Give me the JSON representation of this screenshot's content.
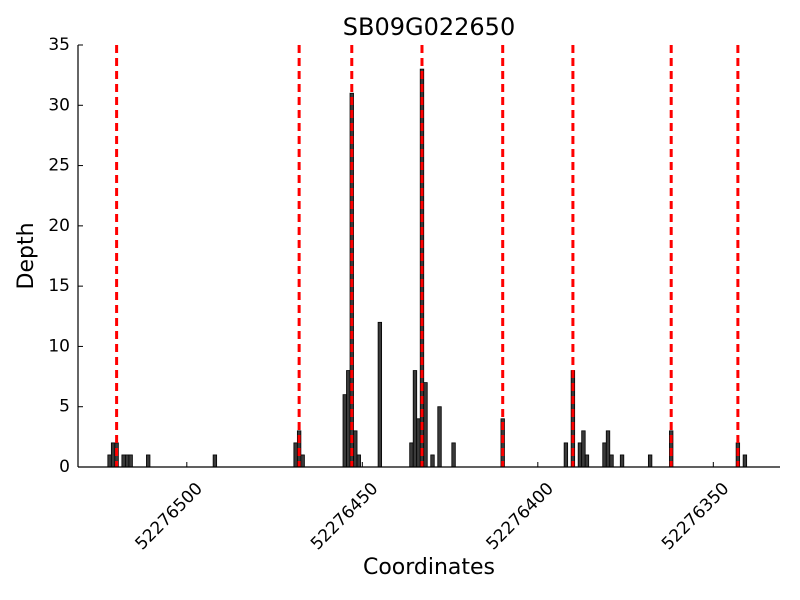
{
  "chart_data": {
    "type": "bar",
    "title": "SB09G022650",
    "x_label": "Coordinates",
    "y_label": "Depth",
    "x": [
      52276522,
      52276521,
      52276520,
      52276518,
      52276517,
      52276516,
      52276511,
      52276492,
      52276469,
      52276468,
      52276467,
      52276455,
      52276454,
      52276453,
      52276452,
      52276451,
      52276445,
      52276436,
      52276435,
      52276434,
      52276433,
      52276432,
      52276430,
      52276428,
      52276424,
      52276410,
      52276392,
      52276390,
      52276388,
      52276387,
      52276386,
      52276381,
      52276380,
      52276379,
      52276376,
      52276368,
      52276362,
      52276343,
      52276341
    ],
    "values": [
      1,
      2,
      2,
      1,
      1,
      1,
      1,
      1,
      2,
      3,
      1,
      6,
      8,
      31,
      3,
      1,
      12,
      2,
      8,
      4,
      33,
      7,
      1,
      5,
      2,
      4,
      2,
      8,
      2,
      3,
      1,
      2,
      3,
      1,
      1,
      1,
      3,
      2,
      1
    ],
    "color": "#3a3a3a",
    "vlines": [
      52276520,
      52276468,
      52276453,
      52276433,
      52276410,
      52276390,
      52276362,
      52276343
    ],
    "vline_color": "#ff0000",
    "xlim": [
      52276531,
      52276331
    ],
    "xticks": [
      52276500,
      52276450,
      52276400,
      52276350
    ],
    "ylim": [
      0,
      35
    ],
    "yticks": [
      0,
      5,
      10,
      15,
      20,
      25,
      30,
      35
    ]
  }
}
